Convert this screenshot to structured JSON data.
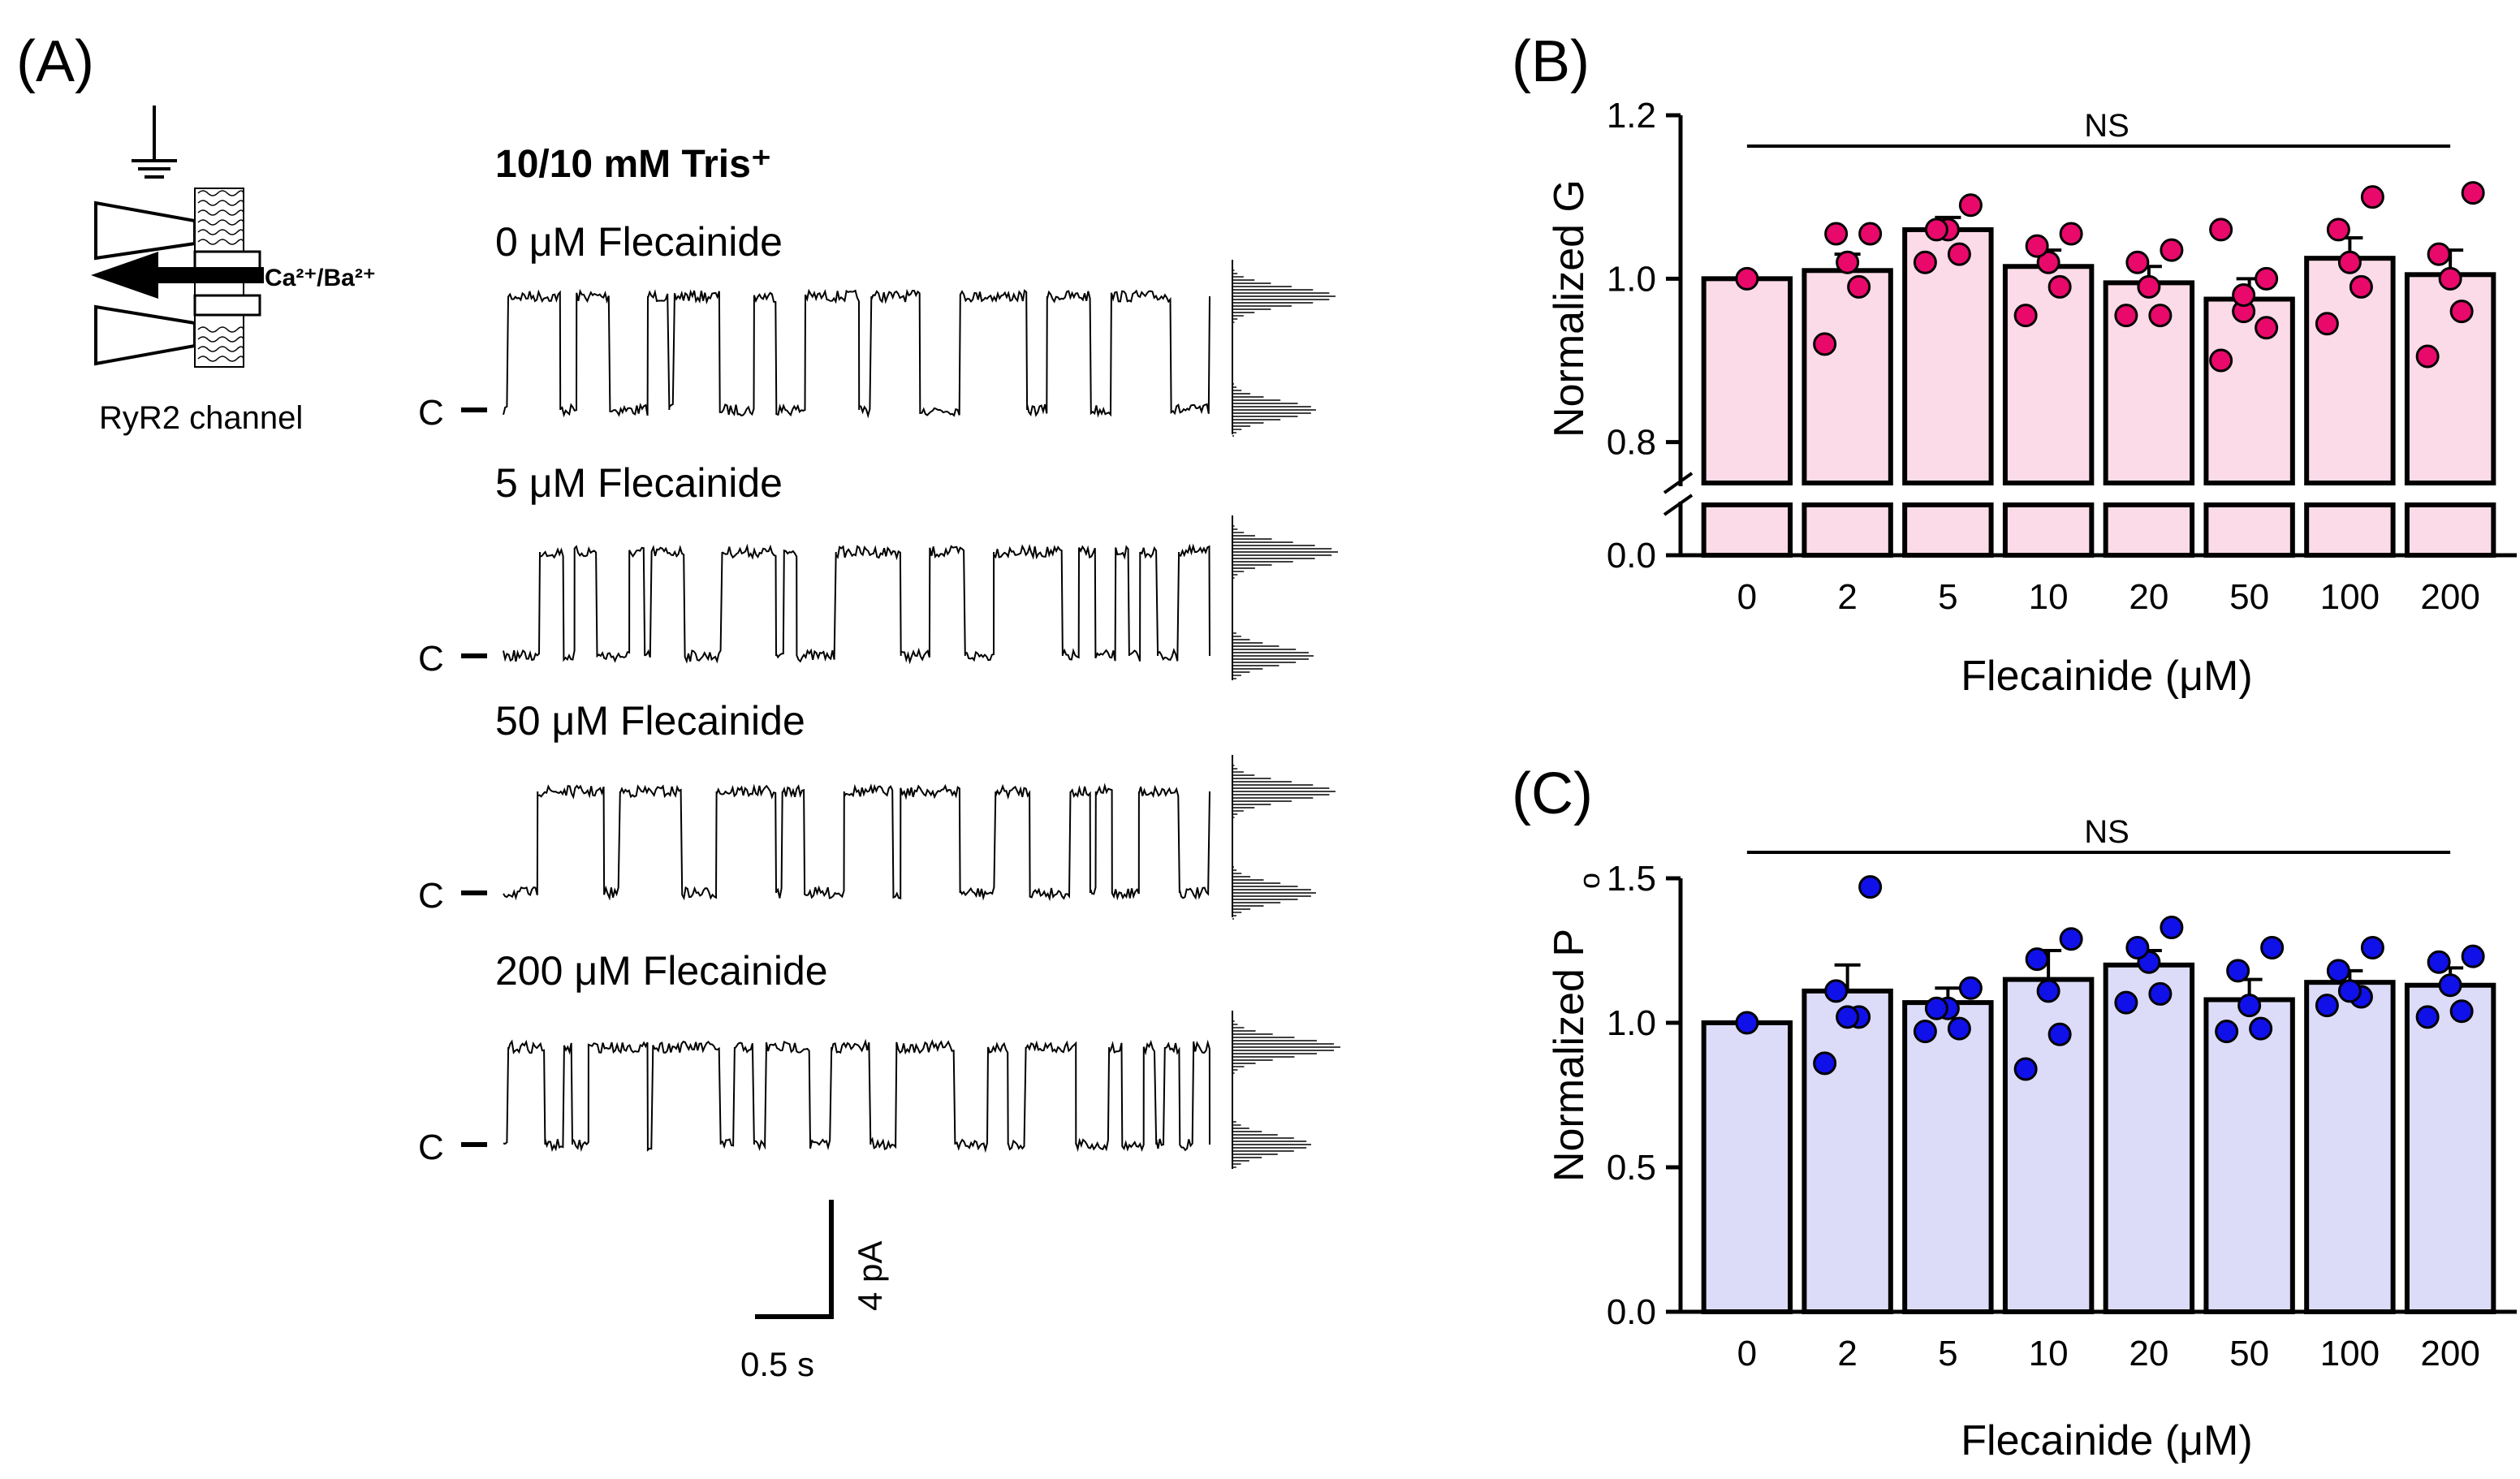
{
  "panel_a": {
    "letter": "(A)",
    "schematic_label": "RyR2 channel",
    "ion_label": "Ca²⁺/Ba²⁺",
    "header": "10/10 mM Tris⁺",
    "closed_label": "C",
    "traces": [
      {
        "label": "0 μM Flecainide",
        "open_fraction": 0.58
      },
      {
        "label": "5 μM Flecainide",
        "open_fraction": 0.6
      },
      {
        "label": "50 μM Flecainide",
        "open_fraction": 0.58
      },
      {
        "label": "200 μM Flecainide",
        "open_fraction": 0.62
      }
    ],
    "scale_current": "4 pA",
    "scale_time": "0.5 s"
  },
  "chart_data": [
    {
      "panel": "(B)",
      "type": "bar",
      "title": "",
      "xlabel": "Flecainide (μM)",
      "ylabel": "Normalized G",
      "categories": [
        "0",
        "2",
        "5",
        "10",
        "20",
        "50",
        "100",
        "200"
      ],
      "values": [
        1.0,
        1.01,
        1.06,
        1.015,
        0.995,
        0.975,
        1.025,
        1.005
      ],
      "sem": [
        0,
        0.02,
        0.015,
        0.02,
        0.02,
        0.025,
        0.025,
        0.03
      ],
      "points": [
        [
          1.0
        ],
        [
          0.92,
          0.99,
          1.02,
          1.055,
          1.055
        ],
        [
          1.02,
          1.03,
          1.06,
          1.06,
          1.09
        ],
        [
          0.955,
          0.99,
          1.02,
          1.04,
          1.055
        ],
        [
          0.955,
          0.955,
          0.99,
          1.02,
          1.035
        ],
        [
          0.9,
          0.94,
          0.96,
          0.98,
          1.0,
          1.06
        ],
        [
          0.945,
          0.99,
          1.02,
          1.06,
          1.1
        ],
        [
          0.905,
          0.96,
          1.0,
          1.03,
          1.105
        ]
      ],
      "ylim": [
        0,
        1.2
      ],
      "axis_break": [
        0.02,
        0.75
      ],
      "yticks": [
        "0.0",
        "0.8",
        "1.0",
        "1.2"
      ],
      "annotation": "NS",
      "bar_color": "#fcdbe8",
      "point_color": "#e8096b"
    },
    {
      "panel": "(C)",
      "type": "bar",
      "title": "",
      "xlabel": "Flecainide (μM)",
      "ylabel": "Normalized P",
      "ylabel_sub": "o",
      "categories": [
        "0",
        "2",
        "5",
        "10",
        "20",
        "50",
        "100",
        "200"
      ],
      "values": [
        1.0,
        1.11,
        1.07,
        1.15,
        1.2,
        1.08,
        1.14,
        1.13
      ],
      "sem": [
        0,
        0.09,
        0.05,
        0.1,
        0.05,
        0.07,
        0.04,
        0.06
      ],
      "points": [
        [
          1.0
        ],
        [
          0.86,
          1.02,
          1.02,
          1.11,
          1.47
        ],
        [
          0.97,
          0.98,
          1.05,
          1.05,
          1.12
        ],
        [
          0.84,
          0.96,
          1.11,
          1.22,
          1.29
        ],
        [
          1.07,
          1.1,
          1.21,
          1.26,
          1.33
        ],
        [
          0.97,
          0.98,
          1.06,
          1.18,
          1.26
        ],
        [
          1.06,
          1.09,
          1.11,
          1.18,
          1.26
        ],
        [
          1.02,
          1.04,
          1.13,
          1.21,
          1.23
        ]
      ],
      "ylim": [
        0,
        1.5
      ],
      "yticks": [
        "0.0",
        "0.5",
        "1.0",
        "1.5"
      ],
      "annotation": "NS",
      "bar_color": "#dcdcf8",
      "point_color": "#1010e8"
    }
  ]
}
